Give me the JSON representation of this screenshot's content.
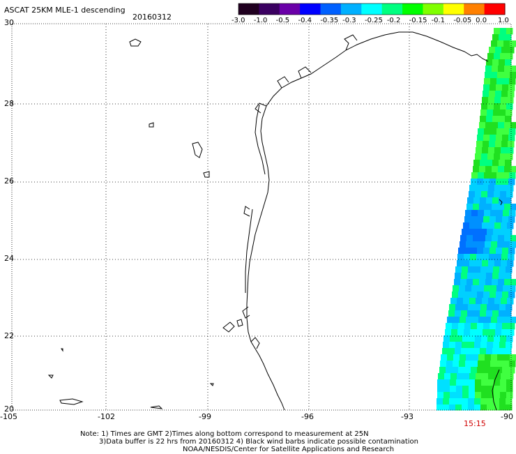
{
  "header": {
    "title": "ASCAT 25KM MLE-1 descending",
    "date": "20160312"
  },
  "colorbar": {
    "labels": [
      "-3.0",
      "-1.0",
      "-0.5",
      "-0.4",
      "-0.35",
      "-0.3",
      "-0.25",
      "-0.2",
      "-0.15",
      "-0.1",
      "-0.05",
      "0.0",
      "1.0"
    ],
    "colors": [
      "#200020",
      "#3a0060",
      "#6a00a8",
      "#0000ff",
      "#0060ff",
      "#00b0ff",
      "#00ffff",
      "#00ff80",
      "#00ff00",
      "#80ff00",
      "#ffff00",
      "#ff8000",
      "#ff0000"
    ]
  },
  "map": {
    "lat_labels": [
      "30",
      "28",
      "26",
      "24",
      "22",
      "20"
    ],
    "lon_labels": [
      "-105",
      "-102",
      "-99",
      "-96",
      "-93",
      "-90"
    ],
    "time_label": "15:15"
  },
  "footer": {
    "line1": "Note: 1) Times are GMT 2)Times along bottom correspond to measurement at 25N",
    "line2": "3)Data buffer is 22 hrs from 20160312 4) Black wind barbs indicate possible contamination",
    "line3": "NOAA/NESDIS/Center for Satellite Applications and Research"
  }
}
